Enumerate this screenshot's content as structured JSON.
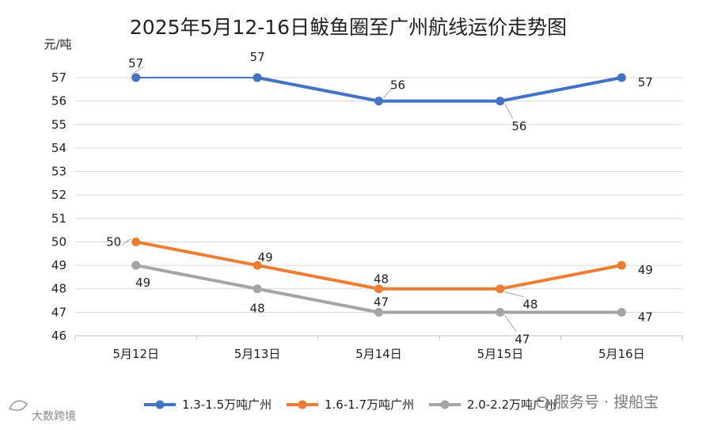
{
  "chart_data": {
    "type": "line",
    "title": "2025年5月12-16日鲅鱼圈至广州航线运价走势图",
    "ylabel": "元/吨",
    "xlabel": "",
    "categories": [
      "5月12日",
      "5月13日",
      "5月14日",
      "5月15日",
      "5月16日"
    ],
    "ylim": [
      46,
      57
    ],
    "yticks": [
      46,
      47,
      48,
      49,
      50,
      51,
      52,
      53,
      54,
      55,
      56,
      57
    ],
    "grid": true,
    "legend_position": "bottom",
    "series": [
      {
        "name": "1.3-1.5万吨广州",
        "color": "#4472c4",
        "values": [
          57,
          57,
          56,
          56,
          57
        ]
      },
      {
        "name": "1.6-1.7万吨广州",
        "color": "#ed7d31",
        "values": [
          50,
          49,
          48,
          48,
          49
        ]
      },
      {
        "name": "2.0-2.2万吨广州",
        "color": "#a5a5a5",
        "values": [
          49,
          48,
          47,
          47,
          47
        ]
      }
    ]
  },
  "watermarks": {
    "right": "服务号 · 搜船宝",
    "left": "大数跨境"
  }
}
